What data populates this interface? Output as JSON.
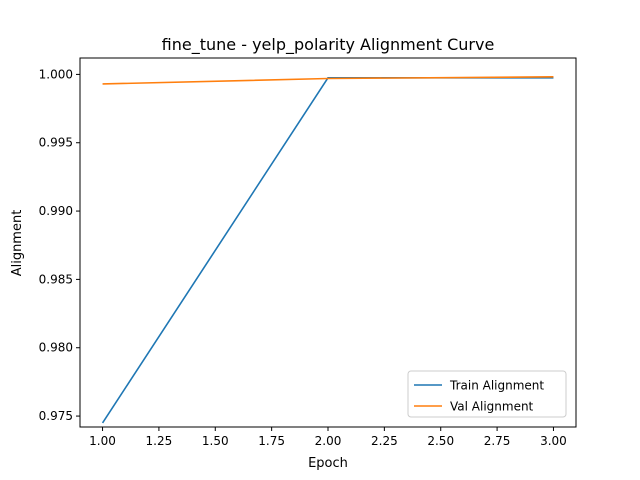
{
  "chart_data": {
    "type": "line",
    "title": "fine_tune - yelp_polarity Alignment Curve",
    "xlabel": "Epoch",
    "ylabel": "Alignment",
    "xlim": [
      0.9,
      3.1
    ],
    "ylim": [
      0.9742,
      1.0012
    ],
    "xticks": [
      1.0,
      1.25,
      1.5,
      1.75,
      2.0,
      2.25,
      2.5,
      2.75,
      3.0
    ],
    "xtick_labels": [
      "1.00",
      "1.25",
      "1.50",
      "1.75",
      "2.00",
      "2.25",
      "2.50",
      "2.75",
      "3.00"
    ],
    "yticks": [
      0.975,
      0.98,
      0.985,
      0.99,
      0.995,
      1.0
    ],
    "ytick_labels": [
      "0.975",
      "0.980",
      "0.985",
      "0.990",
      "0.995",
      "1.000"
    ],
    "grid": false,
    "legend_position": "lower-right",
    "series": [
      {
        "name": "Train Alignment",
        "color": "#1f77b4",
        "x": [
          1,
          2,
          3
        ],
        "y": [
          0.9745,
          0.99975,
          0.99975
        ]
      },
      {
        "name": "Val Alignment",
        "color": "#ff7f0e",
        "x": [
          1,
          2,
          3
        ],
        "y": [
          0.9993,
          0.9997,
          0.99982
        ]
      }
    ]
  }
}
